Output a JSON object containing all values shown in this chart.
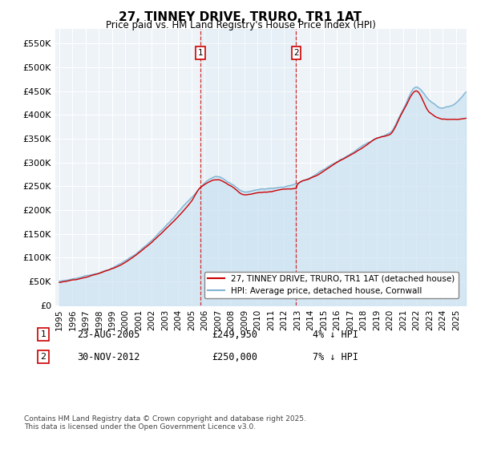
{
  "title": "27, TINNEY DRIVE, TRURO, TR1 1AT",
  "subtitle": "Price paid vs. HM Land Registry's House Price Index (HPI)",
  "hpi_color": "#7fb3d3",
  "hpi_fill_color": "#c5dff0",
  "price_color": "#cc0000",
  "background_color": "#ffffff",
  "plot_bg_color": "#eef3f8",
  "grid_color": "#ffffff",
  "ylim": [
    0,
    580000
  ],
  "yticks": [
    0,
    50000,
    100000,
    150000,
    200000,
    250000,
    300000,
    350000,
    400000,
    450000,
    500000,
    550000
  ],
  "ytick_labels": [
    "£0",
    "£50K",
    "£100K",
    "£150K",
    "£200K",
    "£250K",
    "£300K",
    "£350K",
    "£400K",
    "£450K",
    "£500K",
    "£550K"
  ],
  "annotation1": {
    "year": 2005.65,
    "y": 249950,
    "label": "1",
    "date": "23-AUG-2005",
    "price": "£249,950",
    "pct": "4% ↓ HPI"
  },
  "annotation2": {
    "year": 2012.92,
    "y": 250000,
    "label": "2",
    "date": "30-NOV-2012",
    "price": "£250,000",
    "pct": "7% ↓ HPI"
  },
  "legend_line1": "27, TINNEY DRIVE, TRURO, TR1 1AT (detached house)",
  "legend_line2": "HPI: Average price, detached house, Cornwall",
  "footer": "Contains HM Land Registry data © Crown copyright and database right 2025.\nThis data is licensed under the Open Government Licence v3.0.",
  "xlim_start": 1994.7,
  "xlim_end": 2025.8
}
